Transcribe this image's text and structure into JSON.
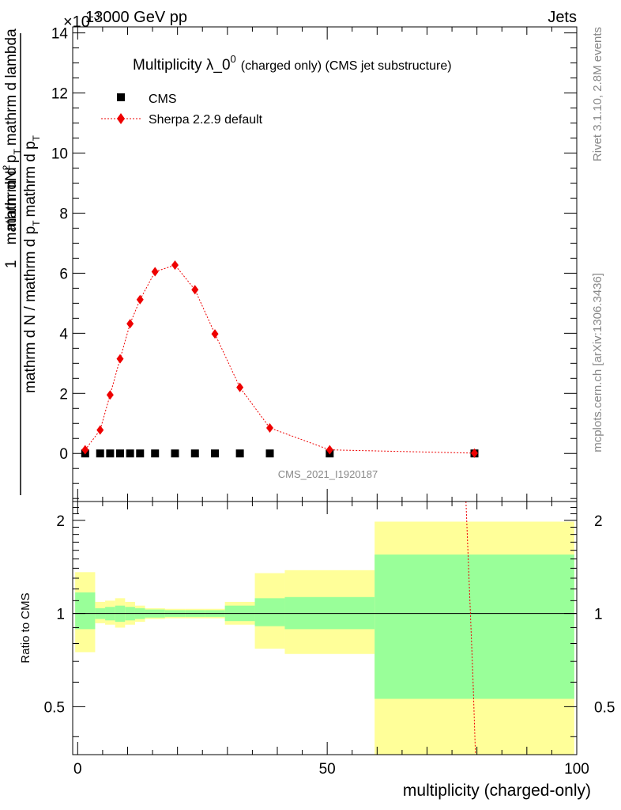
{
  "header": {
    "energy": "13000 GeV pp",
    "category": "Jets",
    "exponent": "×10",
    "exponent_power": "-3"
  },
  "side_text": {
    "rivet": "Rivet 3.1.10,  2.8M events",
    "mcplots": "mcplots.cern.ch [arXiv:1306.3436]"
  },
  "watermark": "CMS_2021_I1920187",
  "chart_data": [
    {
      "type": "scatter",
      "title_main": "Multiplicity λ_0",
      "title_sup": "0",
      "title_rest": "(charged only) (CMS jet substructure)",
      "ylabel_one": "1",
      "ylabel_num": "mathrm dN",
      "ylabel_num2": "mathrm d p",
      "ylabel_num3": "mathrm d lambda",
      "ylabel_den": "mathrm d N / mathrm d p",
      "ylabel_den2": "T",
      "ylabel_den3": "mathrm d p",
      "ylabel_den4": "T",
      "ylim": [
        -1.6,
        14.2
      ],
      "xlim": [
        -1,
        100
      ],
      "yticks": [
        0,
        2,
        4,
        6,
        8,
        10,
        12,
        14
      ],
      "legend_placement": "top-left",
      "series": [
        {
          "name": "CMS",
          "color": "#000000",
          "marker": "square",
          "x": [
            1.5,
            4.5,
            6.5,
            8.5,
            10.5,
            12.5,
            15.5,
            19.5,
            23.5,
            27.5,
            32.5,
            38.5,
            50.5,
            79.5
          ],
          "y": [
            0,
            0,
            0,
            0,
            0,
            0,
            0,
            0,
            0,
            0,
            0,
            0,
            0,
            0
          ]
        },
        {
          "name": "Sherpa 2.2.9 default",
          "color": "#ee0000",
          "marker": "diamond",
          "x": [
            1.5,
            4.5,
            6.5,
            8.5,
            10.5,
            12.5,
            15.5,
            19.5,
            23.5,
            27.5,
            32.5,
            38.5,
            50.5,
            79.5
          ],
          "y": [
            0.12,
            0.78,
            1.95,
            3.15,
            4.32,
            5.12,
            6.05,
            6.27,
            5.45,
            3.98,
            2.2,
            0.85,
            0.12,
            0.01
          ]
        }
      ]
    },
    {
      "type": "area",
      "xlabel": "multiplicity (charged-only)",
      "ylabel": "Ratio to CMS",
      "ylim": [
        0.35,
        2.3
      ],
      "xlim": [
        -1,
        100
      ],
      "xticks": [
        0,
        50,
        100
      ],
      "yticks": [
        0.5,
        1,
        2
      ],
      "reference_line": 1,
      "bands": {
        "bins": [
          [
            -0.5,
            3.5
          ],
          [
            3.5,
            5.5
          ],
          [
            5.5,
            7.5
          ],
          [
            7.5,
            9.5
          ],
          [
            9.5,
            11.5
          ],
          [
            11.5,
            13.5
          ],
          [
            13.5,
            17.5
          ],
          [
            17.5,
            21.5
          ],
          [
            21.5,
            25.5
          ],
          [
            25.5,
            29.5
          ],
          [
            29.5,
            35.5
          ],
          [
            35.5,
            41.5
          ],
          [
            41.5,
            59.5
          ],
          [
            59.5,
            99.5
          ]
        ],
        "inner_color": "#99ff99",
        "outer_color": "#ffff99",
        "inner_low": [
          0.89,
          0.96,
          0.95,
          0.94,
          0.95,
          0.96,
          0.97,
          0.975,
          0.975,
          0.975,
          0.945,
          0.91,
          0.89,
          0.53
        ],
        "inner_high": [
          1.17,
          1.04,
          1.05,
          1.06,
          1.05,
          1.04,
          1.03,
          1.025,
          1.025,
          1.025,
          1.06,
          1.12,
          1.13,
          1.55
        ],
        "outer_low": [
          0.75,
          0.93,
          0.92,
          0.9,
          0.92,
          0.94,
          0.96,
          0.965,
          0.965,
          0.965,
          0.92,
          0.77,
          0.74,
          0.35
        ],
        "outer_high": [
          1.36,
          1.09,
          1.1,
          1.12,
          1.09,
          1.06,
          1.04,
          1.035,
          1.035,
          1.035,
          1.09,
          1.35,
          1.38,
          1.98
        ]
      },
      "ratio_line": {
        "color": "#ee0000",
        "x": [
          77.8,
          79.2,
          79.7
        ],
        "y": [
          2.3,
          0.62,
          0.35
        ]
      }
    }
  ]
}
